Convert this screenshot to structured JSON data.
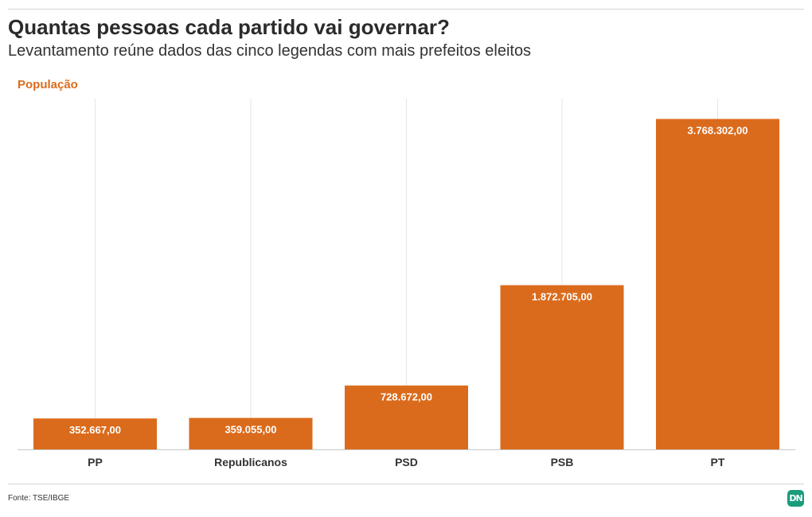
{
  "header": {
    "title": "Quantas pessoas cada partido vai governar?",
    "subtitle": "Levantamento reúne dados das cinco legendas com mais prefeitos eleitos"
  },
  "chart_data": {
    "type": "bar",
    "series_label": "População",
    "categories": [
      "PP",
      "Republicanos",
      "PSD",
      "PSB",
      "PT"
    ],
    "values": [
      352667,
      359055,
      728672,
      1872705,
      3768302
    ],
    "data_labels": [
      "352.667,00",
      "359.055,00",
      "728.672,00",
      "1.872.705,00",
      "3.768.302,00"
    ],
    "ylim": [
      0,
      4000000
    ],
    "grid": "vertical",
    "legend": "none",
    "bar_color": "#db6b1c"
  },
  "footer": {
    "source": "Fonte: TSE/IBGE",
    "logo_text": "DN"
  },
  "colors": {
    "accent": "#db6b1c",
    "brand": "#1a9c7b"
  }
}
